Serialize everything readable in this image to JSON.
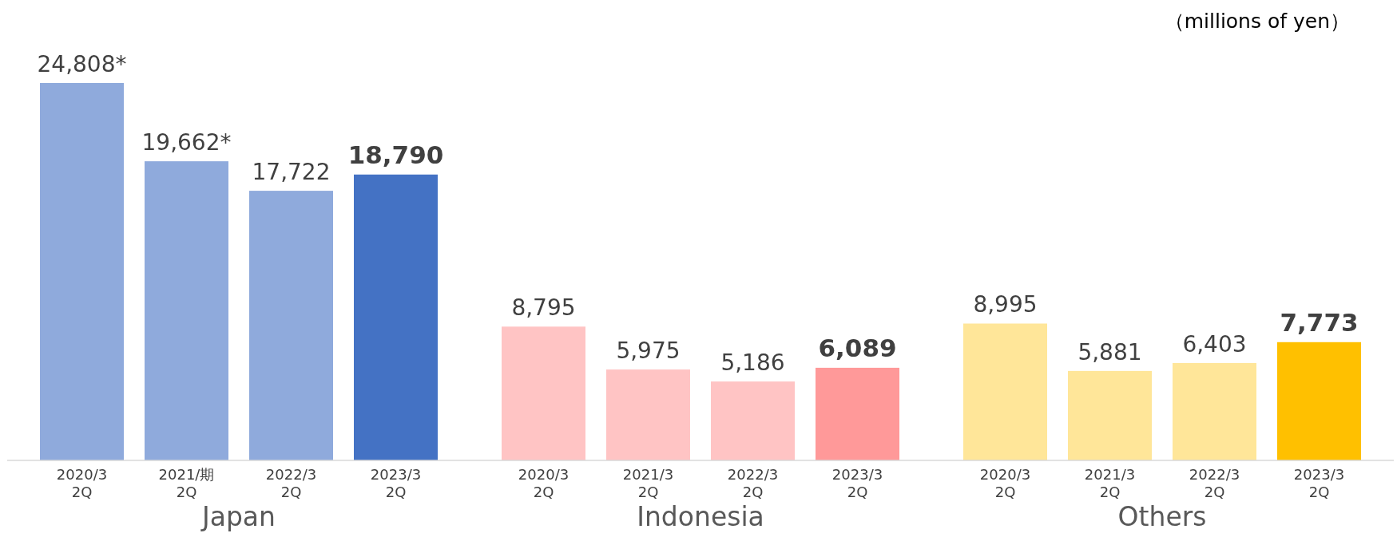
{
  "chart_data": {
    "type": "bar",
    "ylabel": "（millions of yen）",
    "categories": [
      "2020/3\n2Q",
      "2021/期\n2Q",
      "2022/3\n2Q",
      "2023/3\n2Q",
      "2020/3\n2Q",
      "2021/3\n2Q",
      "2022/3\n2Q",
      "2023/3\n2Q",
      "2020/3\n2Q",
      "2021/3\n2Q",
      "2022/3\n2Q",
      "2023/3\n2Q"
    ],
    "values": [
      24808,
      19662,
      17722,
      18790,
      8795,
      5975,
      5186,
      6089,
      8995,
      5881,
      6403,
      7773
    ],
    "colors": [
      "#8faadc",
      "#8faadc",
      "#8faadc",
      "#4472c4",
      "#ffc4c4",
      "#ffc4c4",
      "#ffc4c4",
      "#ff9999",
      "#ffe699",
      "#ffe699",
      "#ffe699",
      "#ffc000"
    ],
    "value_labels": [
      "24,808*",
      "19,662*",
      "17,722",
      "18,790",
      "8,795",
      "5,975",
      "5,186",
      "6,089",
      "8,995",
      "5,881",
      "6,403",
      "7,773"
    ],
    "annotations": [
      "Japan",
      "Indonesia",
      "Others"
    ]
  }
}
